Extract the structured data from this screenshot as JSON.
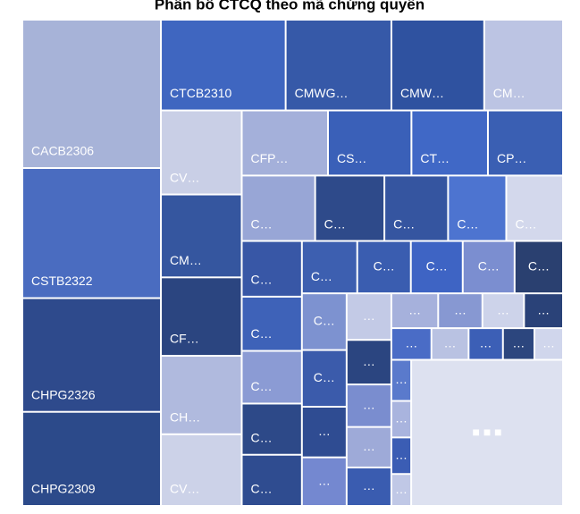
{
  "chart_data": {
    "type": "treemap",
    "title": "Phân bổ CTCQ theo mã chứng quyền",
    "nodes": [
      {
        "label": "CACB2306",
        "value": 227,
        "color": "#a7b3d8"
      },
      {
        "label": "CSTB2322",
        "value": 199,
        "color": "#4a6cc0"
      },
      {
        "label": "CHPG2326",
        "value": 174,
        "color": "#2e4a8c"
      },
      {
        "label": "CHPG2309",
        "value": 144,
        "color": "#2c4a8a"
      },
      {
        "label": "CTCB2310",
        "value": 125,
        "color": "#3f66c0"
      },
      {
        "label": "CMWG…",
        "value": 106,
        "color": "#3659a8"
      },
      {
        "label": "CMW…",
        "value": 93,
        "color": "#2f52a0"
      },
      {
        "label": "CM…",
        "value": 79,
        "color": "#bcc4e3"
      },
      {
        "label": "CV…",
        "value": 75,
        "color": "#c9cfe6"
      },
      {
        "label": "CM…",
        "value": 74,
        "color": "#35569f"
      },
      {
        "label": "CF…",
        "value": 70,
        "color": "#2b4580"
      },
      {
        "label": "CH…",
        "value": 70,
        "color": "#b0bade"
      },
      {
        "label": "CV…",
        "value": 64,
        "color": "#ccd2e8"
      },
      {
        "label": "CFP…",
        "value": 62,
        "color": "#a4b0da"
      },
      {
        "label": "CS…",
        "value": 60,
        "color": "#3a60b8"
      },
      {
        "label": "CT…",
        "value": 55,
        "color": "#4068c6"
      },
      {
        "label": "CP…",
        "value": 54,
        "color": "#3a5fb3"
      },
      {
        "label": "C…",
        "value": 53,
        "color": "#98a6d6"
      },
      {
        "label": "C…",
        "value": 50,
        "color": "#2e4a8a"
      },
      {
        "label": "C…",
        "value": 46,
        "color": "#3555a0"
      },
      {
        "label": "C…",
        "value": 42,
        "color": "#4d74d0"
      },
      {
        "label": "C…",
        "value": 41,
        "color": "#d3d8ec"
      },
      {
        "label": "C…",
        "value": 37,
        "color": "#3857a6"
      },
      {
        "label": "C…",
        "value": 36,
        "color": "#3e62b8"
      },
      {
        "label": "C…",
        "value": 35,
        "color": "#8b9bd4"
      },
      {
        "label": "C…",
        "value": 34,
        "color": "#2d4988"
      },
      {
        "label": "C…",
        "value": 34,
        "color": "#2f4c90"
      },
      {
        "label": "C…",
        "value": 32,
        "color": "#3d5fb0"
      },
      {
        "label": "C…",
        "value": 31,
        "color": "#3a5db0"
      },
      {
        "label": "C…",
        "value": 30,
        "color": "#3e64c4"
      },
      {
        "label": "C…",
        "value": 30,
        "color": "#7b8ed0"
      },
      {
        "label": "C…",
        "value": 28,
        "color": "#2a4070"
      },
      {
        "label": "C…",
        "value": 28,
        "color": "#7d92d0"
      },
      {
        "label": "C…",
        "value": 28,
        "color": "#3b5bab"
      },
      {
        "label": "…",
        "value": 25,
        "color": "#2f4c92"
      },
      {
        "label": "…",
        "value": 24,
        "color": "#7488d0"
      },
      {
        "label": "…",
        "value": 23,
        "color": "#c3cae6"
      },
      {
        "label": "…",
        "value": 22,
        "color": "#2b4580"
      },
      {
        "label": "…",
        "value": 21,
        "color": "#7a8dcf"
      },
      {
        "label": "…",
        "value": 20,
        "color": "#9eaad8"
      },
      {
        "label": "…",
        "value": 19,
        "color": "#3a5cb0"
      },
      {
        "label": "…",
        "value": 18,
        "color": "#a6b1dc"
      },
      {
        "label": "…",
        "value": 17,
        "color": "#8798d2"
      },
      {
        "label": "…",
        "value": 16,
        "color": "#cdd3ea"
      },
      {
        "label": "…",
        "value": 15,
        "color": "#2a4278"
      },
      {
        "label": "…",
        "value": 14,
        "color": "#4a6cc6"
      },
      {
        "label": "…",
        "value": 13,
        "color": "#b9c2e2"
      },
      {
        "label": "…",
        "value": 12,
        "color": "#3c5fb6"
      },
      {
        "label": "…",
        "value": 11,
        "color": "#2c467e"
      },
      {
        "label": "…",
        "value": 10,
        "color": "#d0d6ec"
      },
      {
        "label": "…",
        "value": 9,
        "color": "#5a7acc"
      },
      {
        "label": "…",
        "value": 8,
        "color": "#a9b4de"
      },
      {
        "label": "…",
        "value": 8,
        "color": "#3b5db4"
      },
      {
        "label": "…",
        "value": 7,
        "color": "#c0c8e6"
      },
      {
        "label": "■ ■ ■",
        "value": 245,
        "color": "#dde1f0"
      }
    ]
  }
}
